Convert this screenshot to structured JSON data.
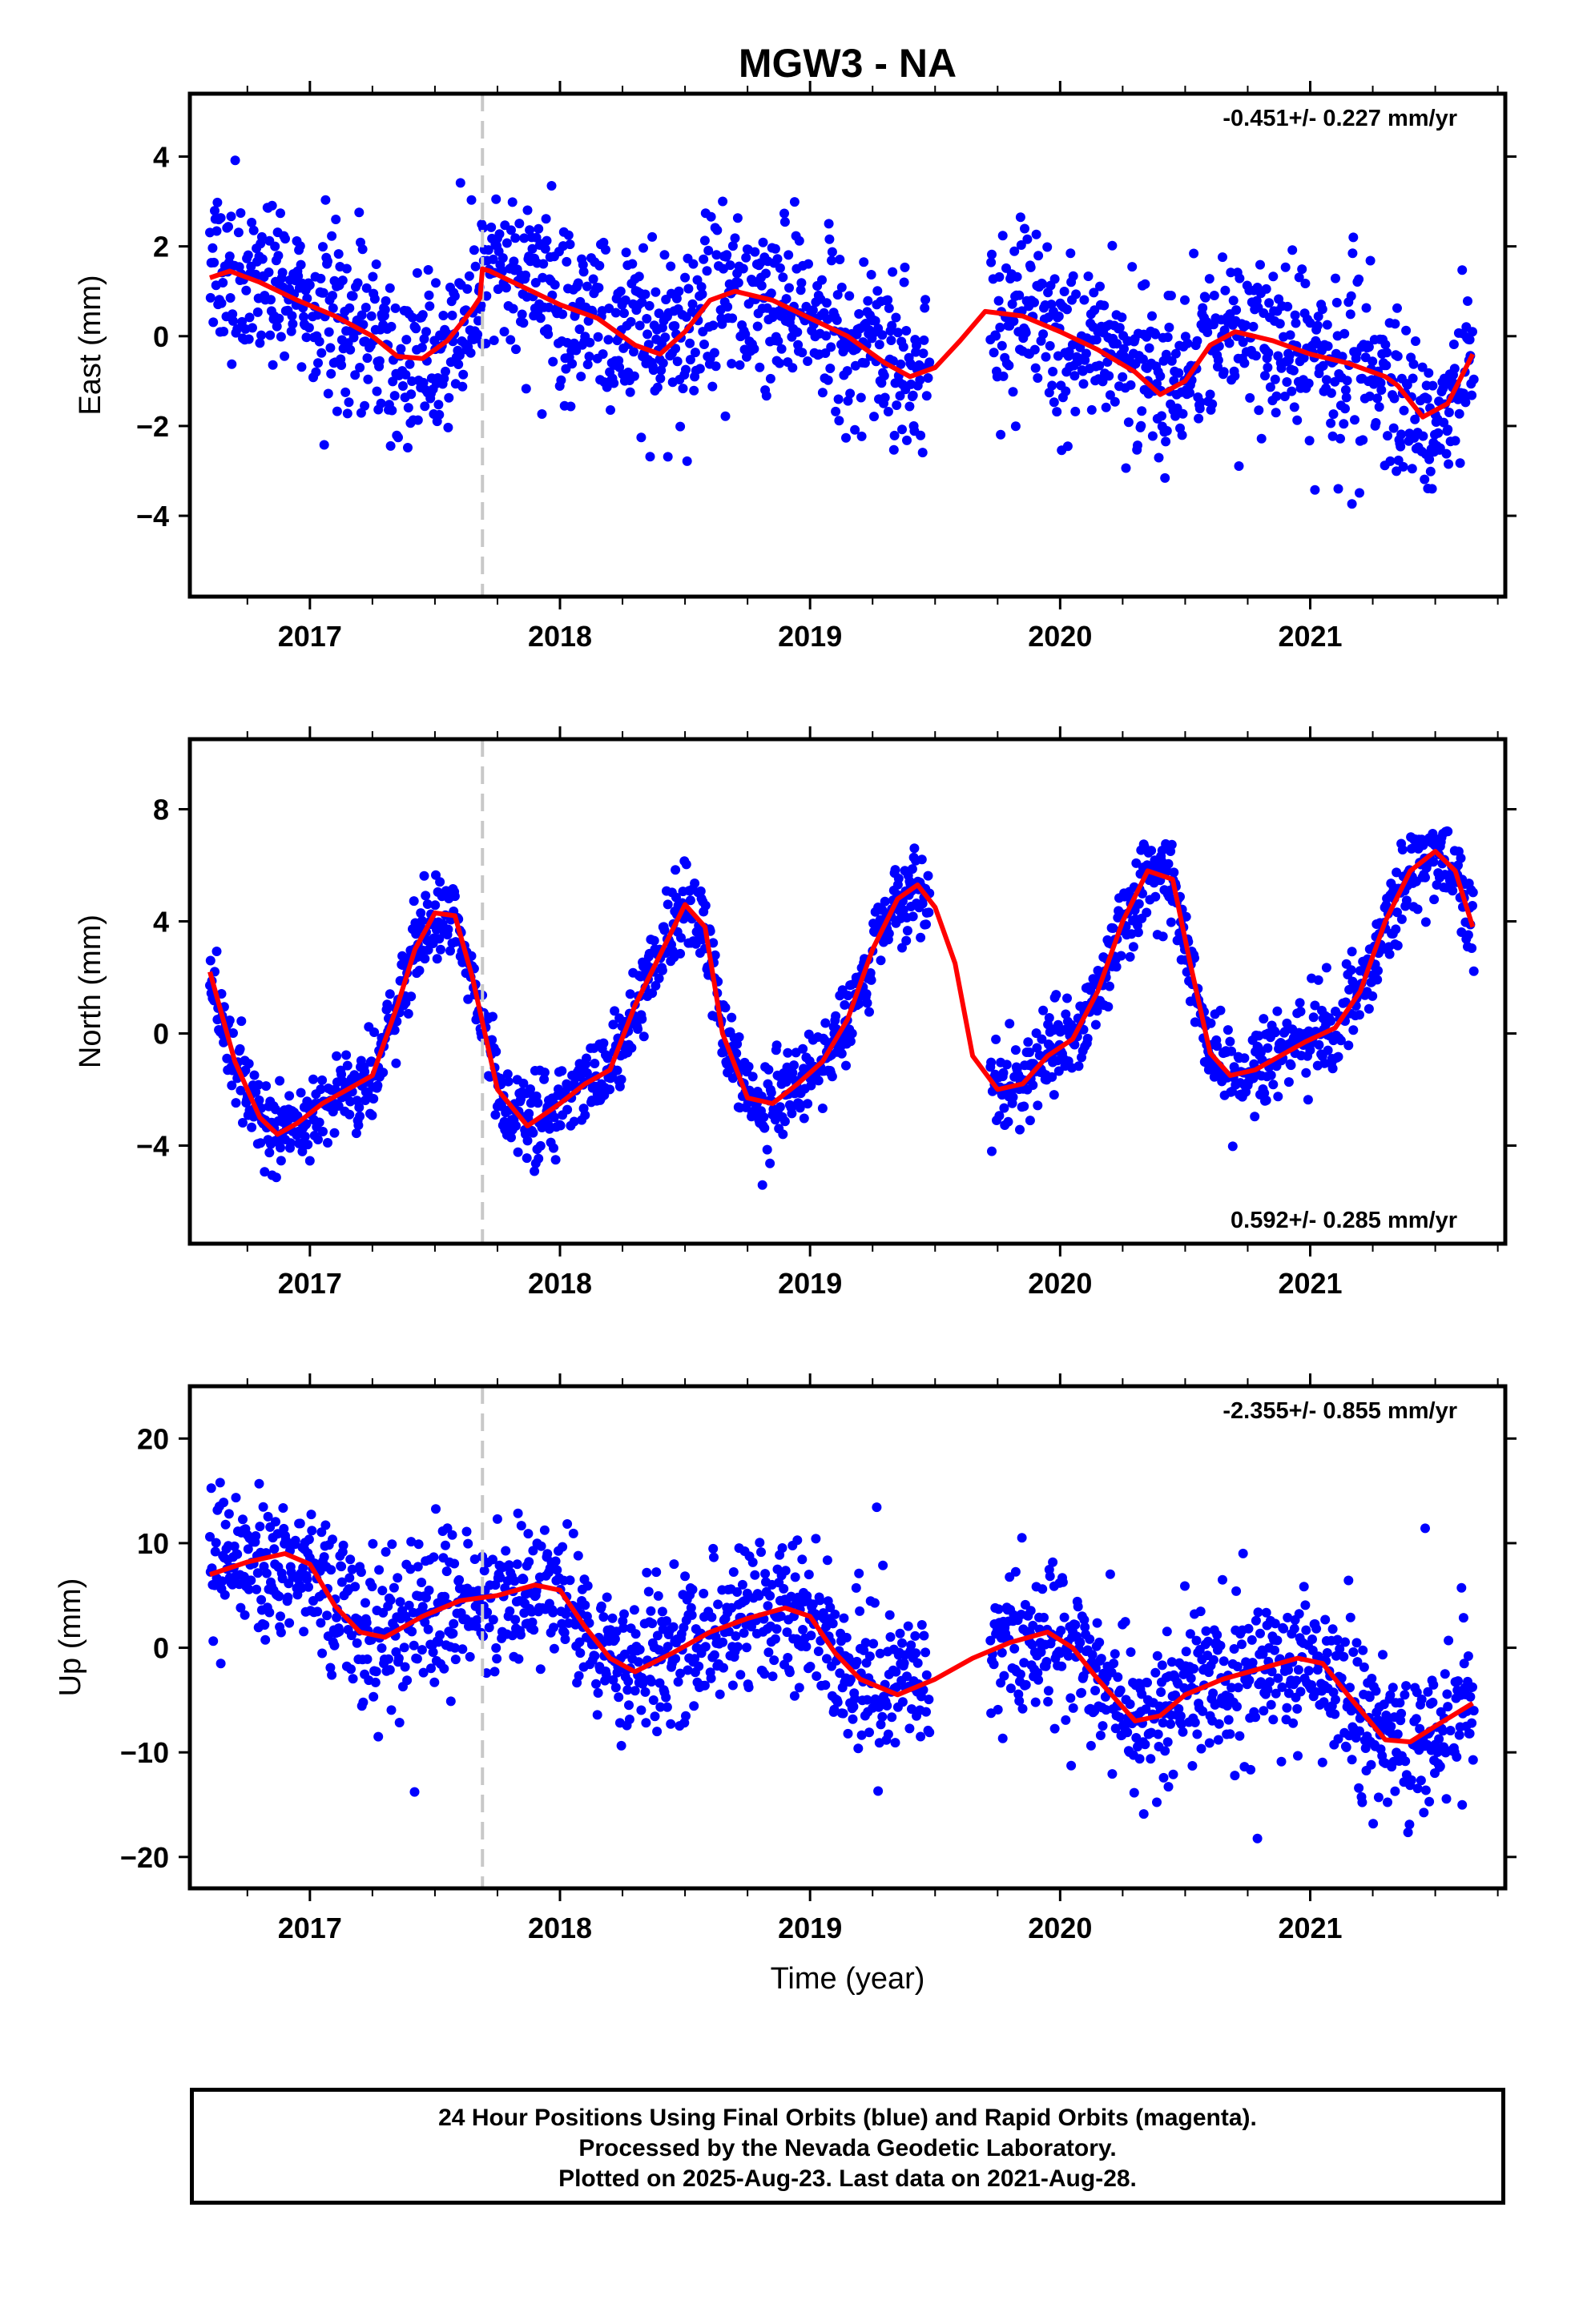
{
  "title": "MGW3 - NA",
  "xlabel": "Time (year)",
  "footer": {
    "line1": "24 Hour Positions Using Final Orbits (blue) and Rapid Orbits (magenta).",
    "line2": "Processed by the Nevada Geodetic Laboratory.",
    "line3": "Plotted on 2025-Aug-23. Last data on 2021-Aug-28."
  },
  "colors": {
    "final_orbits": "#0000ff",
    "fit": "#ff0000",
    "step_marker": "#c8c8c8"
  },
  "chart_data": [
    {
      "type": "scatter",
      "panel": "east",
      "ylabel": "East (mm)",
      "rate_label": "-0.451+/- 0.227 mm/yr",
      "rate_placement": "top-right",
      "xlim": [
        2016.52,
        2021.78
      ],
      "ylim": [
        -5.8,
        5.4
      ],
      "yticks": [
        -4,
        -2,
        0,
        2,
        4
      ],
      "xticks": [
        2017,
        2018,
        2019,
        2020,
        2021
      ],
      "step_marker_x": 2017.69,
      "data_gap": [
        2019.48,
        2019.72
      ],
      "fit": {
        "x": [
          2016.6,
          2016.68,
          2016.8,
          2016.95,
          2017.1,
          2017.25,
          2017.35,
          2017.45,
          2017.55,
          2017.65,
          2017.68,
          2017.69,
          2017.72,
          2017.85,
          2018.0,
          2018.15,
          2018.3,
          2018.4,
          2018.5,
          2018.6,
          2018.7,
          2018.85,
          2019.0,
          2019.15,
          2019.3,
          2019.4,
          2019.5,
          2019.6,
          2019.7,
          2019.85,
          2020.0,
          2020.15,
          2020.3,
          2020.4,
          2020.5,
          2020.6,
          2020.7,
          2020.85,
          2021.0,
          2021.15,
          2021.3,
          2021.35,
          2021.45,
          2021.55,
          2021.65
        ],
        "y": [
          1.3,
          1.45,
          1.2,
          0.8,
          0.45,
          0.0,
          -0.45,
          -0.5,
          -0.1,
          0.6,
          0.85,
          1.5,
          1.45,
          1.1,
          0.7,
          0.4,
          -0.2,
          -0.4,
          0.1,
          0.8,
          1.0,
          0.8,
          0.4,
          0.0,
          -0.6,
          -0.9,
          -0.7,
          -0.1,
          0.55,
          0.45,
          0.1,
          -0.3,
          -0.8,
          -1.3,
          -1.0,
          -0.2,
          0.1,
          -0.1,
          -0.4,
          -0.6,
          -0.9,
          -1.1,
          -1.8,
          -1.5,
          -0.4
        ]
      }
    },
    {
      "type": "scatter",
      "panel": "north",
      "ylabel": "North (mm)",
      "rate_label": "0.592+/- 0.285 mm/yr",
      "rate_placement": "bottom-right",
      "xlim": [
        2016.52,
        2021.78
      ],
      "ylim": [
        -7.5,
        10.5
      ],
      "yticks": [
        -4,
        0,
        4,
        8
      ],
      "xticks": [
        2017,
        2018,
        2019,
        2020,
        2021
      ],
      "step_marker_x": 2017.69,
      "data_gap": [
        2019.48,
        2019.72
      ],
      "fit": {
        "x": [
          2016.6,
          2016.7,
          2016.8,
          2016.87,
          2016.95,
          2017.05,
          2017.15,
          2017.25,
          2017.35,
          2017.42,
          2017.5,
          2017.58,
          2017.65,
          2017.75,
          2017.87,
          2018.0,
          2018.1,
          2018.2,
          2018.3,
          2018.4,
          2018.5,
          2018.58,
          2018.65,
          2018.75,
          2018.85,
          2018.95,
          2019.05,
          2019.15,
          2019.25,
          2019.35,
          2019.43,
          2019.5,
          2019.58,
          2019.65,
          2019.75,
          2019.85,
          2019.95,
          2020.05,
          2020.15,
          2020.25,
          2020.35,
          2020.45,
          2020.52,
          2020.6,
          2020.68,
          2020.78,
          2020.88,
          2020.98,
          2021.1,
          2021.2,
          2021.3,
          2021.4,
          2021.5,
          2021.58,
          2021.65
        ],
        "y": [
          2.2,
          -1.0,
          -3.0,
          -3.6,
          -3.2,
          -2.5,
          -2.0,
          -1.5,
          1.0,
          3.0,
          4.3,
          4.2,
          2.0,
          -2.0,
          -3.3,
          -2.5,
          -1.8,
          -1.3,
          1.0,
          2.8,
          4.6,
          3.8,
          0.0,
          -2.3,
          -2.5,
          -1.8,
          -1.0,
          0.5,
          3.0,
          4.8,
          5.3,
          4.5,
          2.5,
          -0.8,
          -2.0,
          -1.8,
          -0.8,
          -0.2,
          1.5,
          4.0,
          5.8,
          5.5,
          2.5,
          -0.7,
          -1.5,
          -1.3,
          -0.8,
          -0.3,
          0.2,
          1.5,
          4.0,
          5.8,
          6.5,
          5.8,
          3.8
        ]
      }
    },
    {
      "type": "scatter",
      "panel": "up",
      "ylabel": "Up (mm)",
      "rate_label": "-2.355+/- 0.855 mm/yr",
      "rate_placement": "top-right",
      "xlim": [
        2016.52,
        2021.78
      ],
      "ylim": [
        -23,
        25
      ],
      "yticks": [
        -20,
        -10,
        0,
        10,
        20
      ],
      "xticks": [
        2017,
        2018,
        2019,
        2020,
        2021
      ],
      "step_marker_x": 2017.69,
      "data_gap": [
        2019.48,
        2019.72
      ],
      "fit": {
        "x": [
          2016.6,
          2016.75,
          2016.9,
          2017.0,
          2017.1,
          2017.2,
          2017.3,
          2017.45,
          2017.6,
          2017.75,
          2017.9,
          2018.0,
          2018.1,
          2018.2,
          2018.3,
          2018.45,
          2018.6,
          2018.75,
          2018.9,
          2019.0,
          2019.1,
          2019.2,
          2019.35,
          2019.5,
          2019.65,
          2019.8,
          2019.95,
          2020.05,
          2020.15,
          2020.3,
          2020.4,
          2020.5,
          2020.65,
          2020.8,
          2020.95,
          2021.05,
          2021.15,
          2021.3,
          2021.4,
          2021.5,
          2021.65
        ],
        "y": [
          7.0,
          8.2,
          9.0,
          8.0,
          4.0,
          1.5,
          1.0,
          3.0,
          4.5,
          5.0,
          6.0,
          5.5,
          2.0,
          -1.0,
          -2.3,
          -0.5,
          1.5,
          2.8,
          3.8,
          3.0,
          -0.5,
          -3.0,
          -4.5,
          -3.0,
          -1.0,
          0.5,
          1.5,
          0.0,
          -3.0,
          -7.0,
          -6.5,
          -4.5,
          -3.0,
          -2.0,
          -1.0,
          -1.5,
          -4.5,
          -8.8,
          -9.0,
          -7.5,
          -5.3
        ]
      }
    }
  ]
}
